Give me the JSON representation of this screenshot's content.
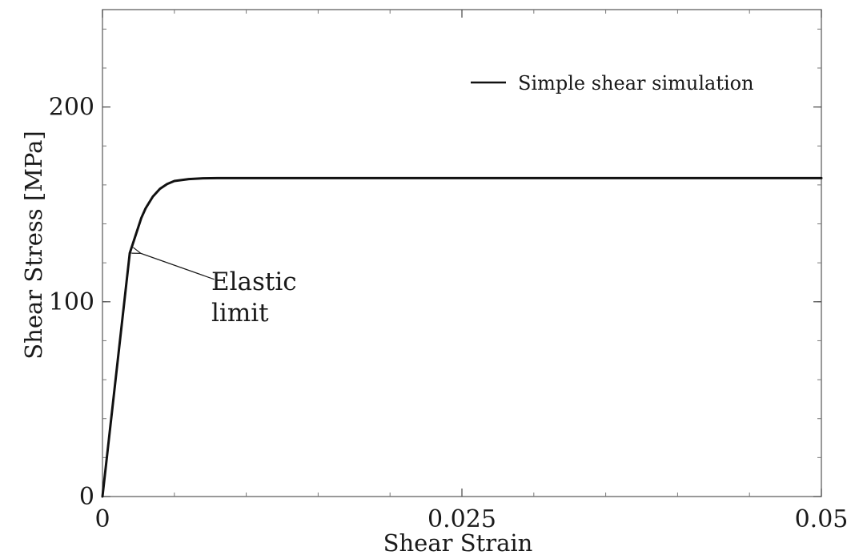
{
  "chart_data": {
    "type": "line",
    "xlabel": "Shear Strain",
    "ylabel": "Shear Stress [MPa]",
    "xlim": [
      0,
      0.05
    ],
    "ylim": [
      0,
      250
    ],
    "x_ticks": [
      0,
      0.025,
      0.05
    ],
    "x_tick_labels": [
      "0",
      "0.025",
      "0.05"
    ],
    "y_ticks": [
      0,
      100,
      200
    ],
    "y_tick_labels": [
      "0",
      "100",
      "200"
    ],
    "x_minor_step": 0.005,
    "y_minor_step": 20,
    "grid": false,
    "legend": {
      "position": "top-right",
      "entries": [
        "Simple shear simulation"
      ]
    },
    "series": [
      {
        "name": "Simple shear simulation",
        "color": "#111111",
        "x": [
          0,
          0.0019,
          0.0023,
          0.0027,
          0.003,
          0.0035,
          0.004,
          0.0045,
          0.005,
          0.006,
          0.007,
          0.008,
          0.01,
          0.02,
          0.03,
          0.04,
          0.05
        ],
        "y": [
          0,
          125,
          134,
          143,
          148,
          154,
          158,
          160.5,
          162,
          163,
          163.4,
          163.5,
          163.5,
          163.5,
          163.5,
          163.5,
          163.5
        ]
      }
    ],
    "annotations": [
      {
        "lines": [
          "Elastic",
          "limit"
        ],
        "points_to": {
          "x": 0.0025,
          "y": 125
        },
        "text_at": {
          "x": 0.0075,
          "y": 100
        }
      }
    ]
  }
}
